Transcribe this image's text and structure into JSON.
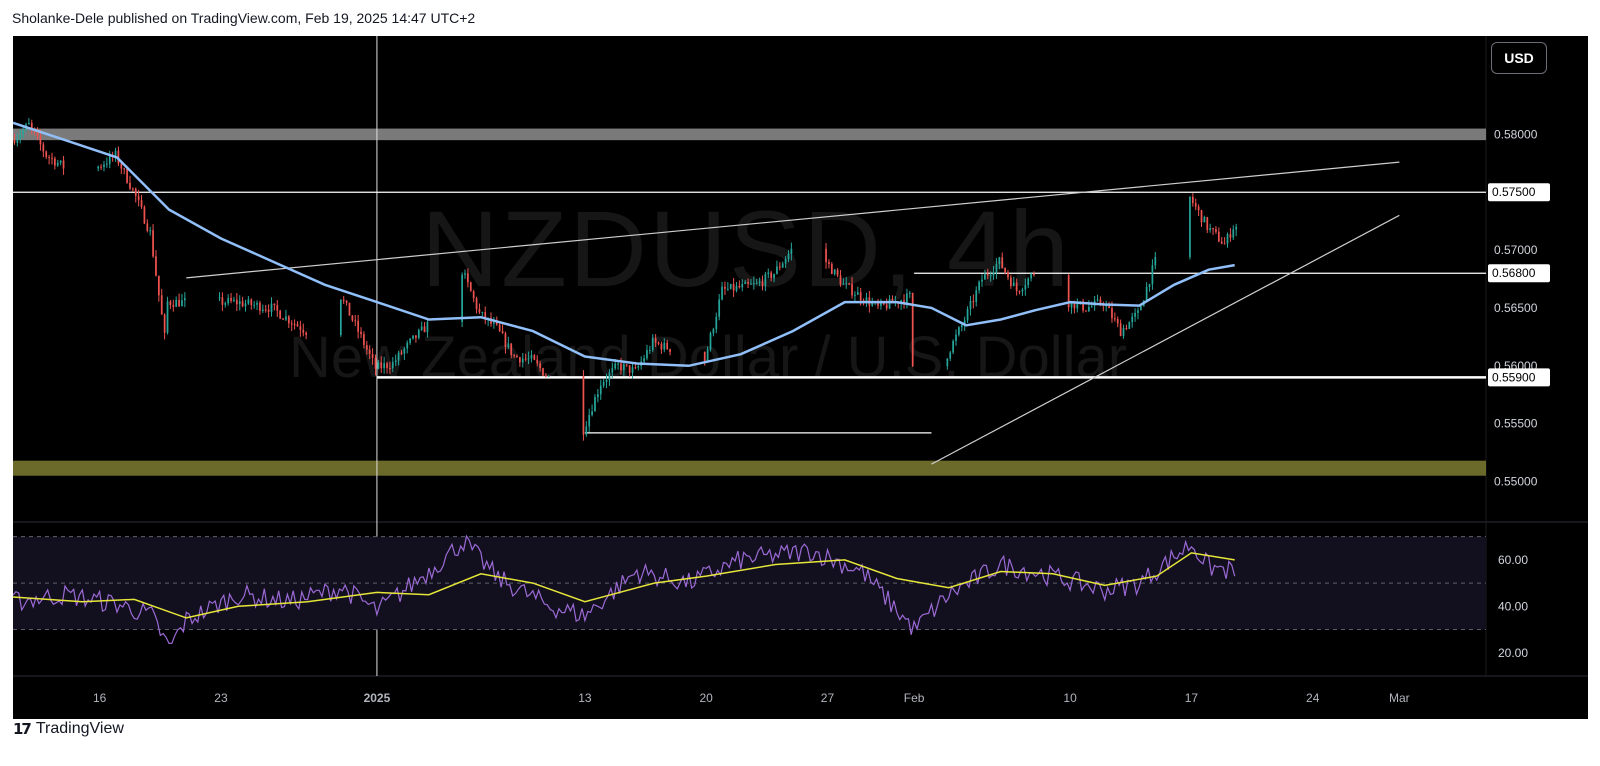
{
  "header": {
    "published_by": "Sholanke-Dele published on TradingView.com, Feb 19, 2025 14:47 UTC+2"
  },
  "watermark": {
    "symbol": "NZDUSD, 4h",
    "description": "New Zealand Dollar / U.S. Dollar"
  },
  "currency_button": "USD",
  "footer": {
    "brand": "TradingView"
  },
  "colors": {
    "background": "#000000",
    "up": "#26a69a",
    "down": "#ef5350",
    "ma": "#90bff9",
    "rsi": "#9c6ad6",
    "rsi_ma": "#e6e63a",
    "supply_zone": "#7a7a7a",
    "demand_zone": "#6b6a2a"
  },
  "chart_data": [
    {
      "type": "candlestick",
      "ylim": [
        0.5465,
        0.5885
      ],
      "y_ticks": [
        0.55,
        0.555,
        0.56,
        0.565,
        0.57,
        0.575,
        0.58
      ],
      "y_tick_labels": [
        "0.55000",
        "0.55500",
        "0.56000",
        "0.56500",
        "0.57000",
        "0.57500",
        "0.58000"
      ],
      "x_tick_labels": [
        "16",
        "23",
        "2025",
        "13",
        "20",
        "27",
        "Feb",
        "10",
        "17",
        "24",
        "Mar"
      ],
      "x_tick_dates": [
        "2024-12-16",
        "2024-12-23",
        "2025-01-01",
        "2025-01-13",
        "2025-01-20",
        "2025-01-27",
        "2025-02-01",
        "2025-02-10",
        "2025-02-17",
        "2025-02-24",
        "2025-03-01"
      ],
      "x_range": [
        "2024-12-11",
        "2025-03-06"
      ],
      "last_bar_date": "2025-02-19T12:00",
      "price_path": [
        [
          "2024-12-11",
          0.5795
        ],
        [
          "2024-12-12",
          0.5808
        ],
        [
          "2024-12-13",
          0.5782
        ],
        [
          "2024-12-15",
          0.5762
        ],
        [
          "2024-12-17",
          0.5782
        ],
        [
          "2024-12-18",
          0.5752
        ],
        [
          "2024-12-19",
          0.5715
        ],
        [
          "2024-12-19T20:00",
          0.5625
        ],
        [
          "2024-12-20",
          0.5655
        ],
        [
          "2024-12-23",
          0.5655
        ],
        [
          "2024-12-24",
          0.5655
        ],
        [
          "2024-12-26",
          0.565
        ],
        [
          "2024-12-28",
          0.563
        ],
        [
          "2024-12-30",
          0.566
        ],
        [
          "2024-12-31",
          0.563
        ],
        [
          "2025-01-01",
          0.5598
        ],
        [
          "2025-01-02",
          0.5602
        ],
        [
          "2025-01-03",
          0.562
        ],
        [
          "2025-01-05",
          0.565
        ],
        [
          "2025-01-06",
          0.5682
        ],
        [
          "2025-01-07",
          0.5645
        ],
        [
          "2025-01-08",
          0.5632
        ],
        [
          "2025-01-09",
          0.5608
        ],
        [
          "2025-01-10",
          0.5605
        ],
        [
          "2025-01-11",
          0.559
        ],
        [
          "2025-01-12",
          0.5555
        ],
        [
          "2025-01-13",
          0.5545
        ],
        [
          "2025-01-14",
          0.5585
        ],
        [
          "2025-01-15",
          0.56
        ],
        [
          "2025-01-16",
          0.5595
        ],
        [
          "2025-01-17",
          0.562
        ],
        [
          "2025-01-18",
          0.5615
        ],
        [
          "2025-01-19",
          0.5585
        ],
        [
          "2025-01-20",
          0.5605
        ],
        [
          "2025-01-21",
          0.5665
        ],
        [
          "2025-01-23",
          0.567
        ],
        [
          "2025-01-24",
          0.568
        ],
        [
          "2025-01-25",
          0.57
        ],
        [
          "2025-01-26",
          0.5715
        ],
        [
          "2025-01-27",
          0.569
        ],
        [
          "2025-01-28",
          0.567
        ],
        [
          "2025-01-29",
          0.566
        ],
        [
          "2025-01-30",
          0.565
        ],
        [
          "2025-01-31",
          0.5655
        ],
        [
          "2025-01-31T20:00",
          0.566
        ],
        [
          "2025-02-01",
          0.56
        ],
        [
          "2025-02-01T04:00",
          0.5545
        ],
        [
          "2025-02-02",
          0.557
        ],
        [
          "2025-02-03",
          0.561
        ],
        [
          "2025-02-04",
          0.564
        ],
        [
          "2025-02-05",
          0.5675
        ],
        [
          "2025-02-06",
          0.569
        ],
        [
          "2025-02-07",
          0.5665
        ],
        [
          "2025-02-08",
          0.568
        ],
        [
          "2025-02-09",
          0.566
        ],
        [
          "2025-02-10",
          0.5655
        ],
        [
          "2025-02-11",
          0.565
        ],
        [
          "2025-02-12",
          0.5655
        ],
        [
          "2025-02-13",
          0.563
        ],
        [
          "2025-02-14",
          0.5645
        ],
        [
          "2025-02-15",
          0.569
        ],
        [
          "2025-02-16",
          0.572
        ],
        [
          "2025-02-17",
          0.5745
        ],
        [
          "2025-02-18",
          0.572
        ],
        [
          "2025-02-19",
          0.5705
        ],
        [
          "2025-02-19T12:00",
          0.572
        ]
      ],
      "moving_average": [
        [
          "2024-12-11",
          0.581
        ],
        [
          "2024-12-14",
          0.5795
        ],
        [
          "2024-12-17",
          0.578
        ],
        [
          "2024-12-20",
          0.5735
        ],
        [
          "2024-12-23",
          0.571
        ],
        [
          "2024-12-26",
          0.569
        ],
        [
          "2024-12-29",
          0.567
        ],
        [
          "2025-01-01",
          0.5655
        ],
        [
          "2025-01-04",
          0.564
        ],
        [
          "2025-01-07",
          0.5642
        ],
        [
          "2025-01-10",
          0.563
        ],
        [
          "2025-01-13",
          0.5608
        ],
        [
          "2025-01-16",
          0.5602
        ],
        [
          "2025-01-19",
          0.56
        ],
        [
          "2025-01-22",
          0.561
        ],
        [
          "2025-01-25",
          0.563
        ],
        [
          "2025-01-28",
          0.5655
        ],
        [
          "2025-01-31",
          0.5655
        ],
        [
          "2025-02-02",
          0.565
        ],
        [
          "2025-02-04",
          0.5635
        ],
        [
          "2025-02-06",
          0.564
        ],
        [
          "2025-02-08",
          0.5648
        ],
        [
          "2025-02-10",
          0.5655
        ],
        [
          "2025-02-12",
          0.5653
        ],
        [
          "2025-02-14",
          0.5652
        ],
        [
          "2025-02-16",
          0.567
        ],
        [
          "2025-02-18",
          0.5683
        ],
        [
          "2025-02-19T12:00",
          0.5687
        ]
      ],
      "horizontal_levels": [
        {
          "price": 0.575,
          "label": "0.57500",
          "from": "2024-12-11"
        },
        {
          "price": 0.568,
          "label": "0.56800",
          "from": "2025-02-01"
        },
        {
          "price": 0.559,
          "label": "0.55900",
          "from": "2025-01-01"
        },
        {
          "price": 0.5542,
          "label": "",
          "from": "2025-01-13",
          "to": "2025-02-02"
        }
      ],
      "zones": [
        {
          "name": "supply",
          "from_price": 0.5795,
          "to_price": 0.5805
        },
        {
          "name": "demand",
          "from_price": 0.5505,
          "to_price": 0.5518
        }
      ],
      "trendlines": [
        {
          "name": "upper",
          "from": [
            "2024-12-21",
            0.5676
          ],
          "to": [
            "2025-03-01",
            0.5776
          ]
        },
        {
          "name": "rising-support",
          "from": [
            "2025-02-02",
            0.5515
          ],
          "to": [
            "2025-03-01",
            0.573
          ]
        }
      ],
      "crosshair_date": "2025-01-01"
    },
    {
      "type": "line",
      "indicator": "RSI",
      "ylim": [
        10,
        72
      ],
      "y_ticks": [
        20,
        40,
        60
      ],
      "y_tick_labels": [
        "20.00",
        "40.00",
        "60.00"
      ],
      "band": [
        30,
        70
      ],
      "midline": 50,
      "series": [
        {
          "values": [
            [
              "2024-12-11",
              42
            ],
            [
              "2024-12-14",
              45
            ],
            [
              "2024-12-17",
              41
            ],
            [
              "2024-12-19",
              36
            ],
            [
              "2024-12-20",
              22
            ],
            [
              "2024-12-21",
              34
            ],
            [
              "2024-12-24",
              45
            ],
            [
              "2024-12-27",
              42
            ],
            [
              "2024-12-30",
              48
            ],
            [
              "2025-01-01",
              38
            ],
            [
              "2025-01-04",
              55
            ],
            [
              "2025-01-06",
              68
            ],
            [
              "2025-01-08",
              52
            ],
            [
              "2025-01-11",
              40
            ],
            [
              "2025-01-13",
              36
            ],
            [
              "2025-01-16",
              55
            ],
            [
              "2025-01-19",
              50
            ],
            [
              "2025-01-22",
              60
            ],
            [
              "2025-01-26",
              64
            ],
            [
              "2025-01-29",
              55
            ],
            [
              "2025-02-01",
              30
            ],
            [
              "2025-02-03",
              45
            ],
            [
              "2025-02-06",
              58
            ],
            [
              "2025-02-09",
              53
            ],
            [
              "2025-02-12",
              47
            ],
            [
              "2025-02-14",
              50
            ],
            [
              "2025-02-17",
              67
            ],
            [
              "2025-02-18",
              57
            ],
            [
              "2025-02-19T12:00",
              55
            ]
          ]
        },
        {
          "values": [
            [
              "2024-12-11",
              44
            ],
            [
              "2024-12-15",
              42
            ],
            [
              "2024-12-18",
              43
            ],
            [
              "2024-12-21",
              35
            ],
            [
              "2024-12-24",
              40
            ],
            [
              "2024-12-28",
              42
            ],
            [
              "2025-01-01",
              46
            ],
            [
              "2025-01-04",
              45
            ],
            [
              "2025-01-07",
              54
            ],
            [
              "2025-01-10",
              50
            ],
            [
              "2025-01-13",
              42
            ],
            [
              "2025-01-17",
              50
            ],
            [
              "2025-01-20",
              53
            ],
            [
              "2025-01-24",
              58
            ],
            [
              "2025-01-28",
              60
            ],
            [
              "2025-01-31",
              52
            ],
            [
              "2025-02-03",
              48
            ],
            [
              "2025-02-06",
              55
            ],
            [
              "2025-02-09",
              54
            ],
            [
              "2025-02-12",
              49
            ],
            [
              "2025-02-15",
              53
            ],
            [
              "2025-02-17",
              63
            ],
            [
              "2025-02-19T12:00",
              60
            ]
          ]
        }
      ]
    }
  ]
}
